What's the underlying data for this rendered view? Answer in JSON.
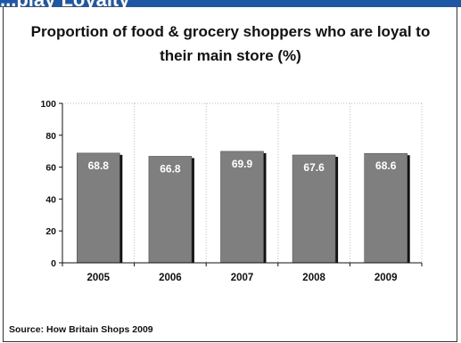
{
  "header": {
    "band_text": "...play Loyalty"
  },
  "source": "Source: How Britain Shops 2009",
  "colors": {
    "band": "#1e57a6",
    "bar": "#7f7f7f",
    "bar_shadow": "#111111",
    "grid": "#bdbdbd"
  },
  "chart_data": {
    "type": "bar",
    "title": "Proportion of food & grocery shoppers who are loyal to their main store (%)",
    "xlabel": "",
    "ylabel": "",
    "categories": [
      "2005",
      "2006",
      "2007",
      "2008",
      "2009"
    ],
    "values": [
      68.8,
      66.8,
      69.9,
      67.6,
      68.6
    ],
    "data_labels": [
      "68.8",
      "66.8",
      "69.9",
      "67.6",
      "68.6"
    ],
    "ylim": [
      0,
      100
    ],
    "yticks": [
      "0",
      "20",
      "40",
      "60",
      "80",
      "100"
    ],
    "grid": "vertical-dotted",
    "legend": "none"
  }
}
